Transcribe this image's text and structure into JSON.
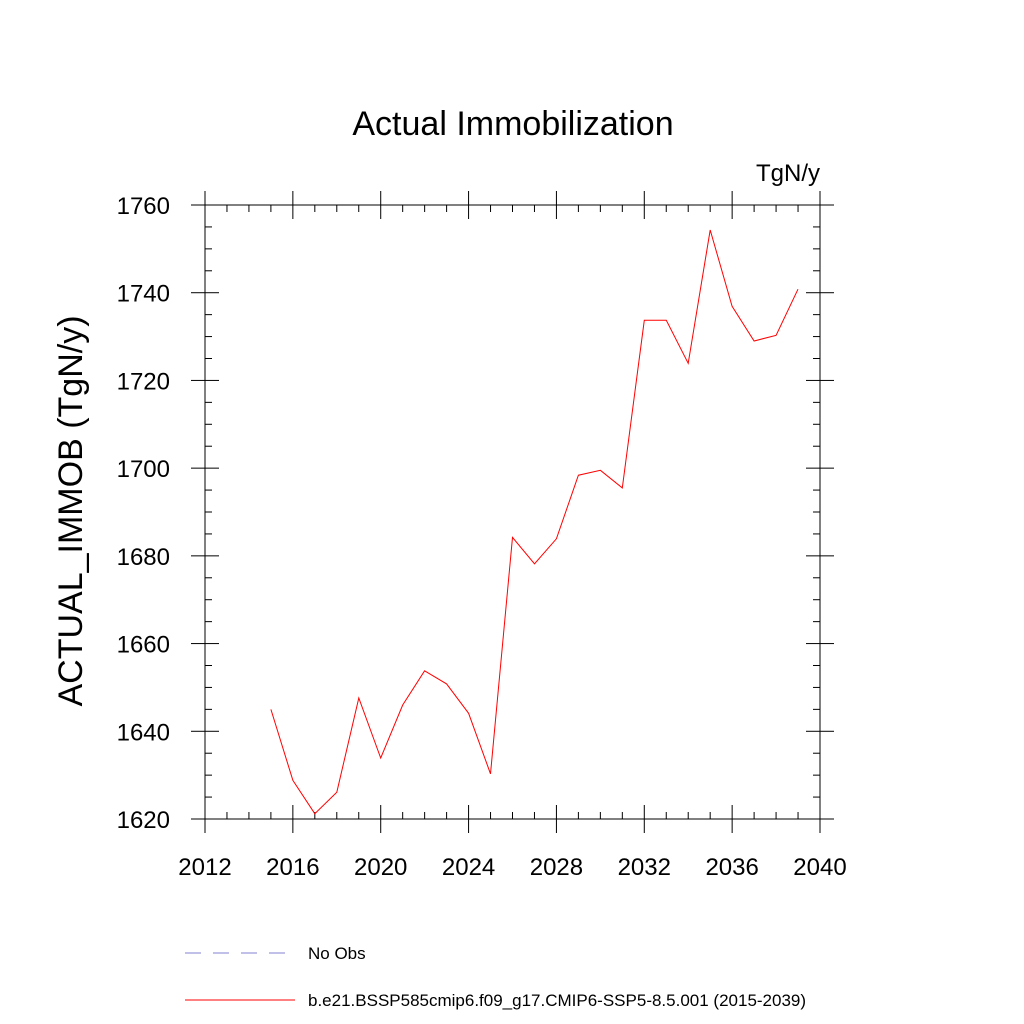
{
  "chart_data": {
    "type": "line",
    "title": "Actual Immobilization",
    "units_label": "TgN/y",
    "ylabel": "ACTUAL_IMMOB  (TgN/y)",
    "xlabel": "",
    "xlim": [
      2012,
      2040
    ],
    "ylim": [
      1620,
      1760
    ],
    "x_ticks": [
      2012,
      2016,
      2020,
      2024,
      2028,
      2032,
      2036,
      2040
    ],
    "y_ticks": [
      1620,
      1640,
      1660,
      1680,
      1700,
      1720,
      1740,
      1760
    ],
    "grid": false,
    "series": [
      {
        "name": "b.e21.BSSP585cmip6.f09_g17.CMIP6-SSP5-8.5.001 (2015-2039)",
        "color": "#ff0000",
        "x": [
          2015,
          2016,
          2017,
          2018,
          2019,
          2020,
          2021,
          2022,
          2023,
          2024,
          2025,
          2026,
          2027,
          2028,
          2029,
          2030,
          2031,
          2032,
          2033,
          2034,
          2035,
          2036,
          2037,
          2038,
          2039
        ],
        "y": [
          1645.0,
          1628.8,
          1621.2,
          1626.1,
          1647.6,
          1633.9,
          1646.0,
          1653.8,
          1650.8,
          1644.1,
          1630.3,
          1684.2,
          1678.2,
          1683.9,
          1698.4,
          1699.5,
          1695.5,
          1733.7,
          1733.7,
          1723.9,
          1754.3,
          1736.9,
          1729.0,
          1730.3,
          1740.8
        ]
      }
    ],
    "legend": {
      "placement": "bottom",
      "entries": [
        {
          "label": "No Obs",
          "color": "#8080d0",
          "style": "dashed"
        },
        {
          "label": "b.e21.BSSP585cmip6.f09_g17.CMIP6-SSP5-8.5.001 (2015-2039)",
          "color": "#ff0000",
          "style": "solid"
        }
      ]
    }
  }
}
